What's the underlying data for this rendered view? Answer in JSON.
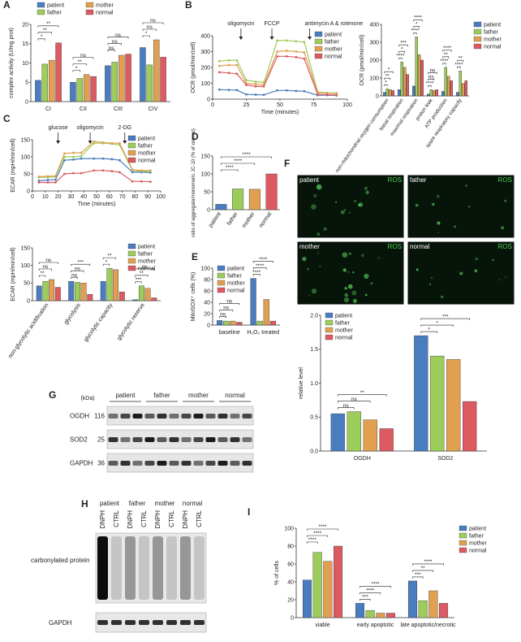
{
  "panel_labels": [
    "A",
    "B",
    "C",
    "D",
    "E",
    "F",
    "G",
    "H",
    "I"
  ],
  "chart_data": [
    {
      "type": "bar",
      "ylabel": "complex activity (U/mg prot)",
      "categories": [
        "CI",
        "CII",
        "CIII",
        "CIV"
      ],
      "ylim": [
        0,
        20
      ],
      "yticks": [
        0,
        5,
        10,
        15,
        20
      ],
      "legend": "top",
      "series": [
        {
          "name": "patient",
          "color": "#4a7cc0",
          "values": [
            5.5,
            5.0,
            9.3,
            14.0
          ]
        },
        {
          "name": "father",
          "color": "#9ccc5a",
          "values": [
            9.7,
            6.0,
            10.2,
            9.5
          ]
        },
        {
          "name": "mother",
          "color": "#e0a050",
          "values": [
            10.7,
            7.0,
            12.0,
            16.0
          ]
        },
        {
          "name": "normal",
          "color": "#dd5a60",
          "values": [
            15.2,
            6.5,
            12.3,
            11.5
          ]
        }
      ],
      "significance": [
        {
          "label": "*",
          "category": 0,
          "from": 0,
          "to": 1
        },
        {
          "label": "**",
          "category": 0,
          "from": 0,
          "to": 2
        },
        {
          "label": "**",
          "category": 0,
          "from": 0,
          "to": 3
        },
        {
          "label": "*",
          "category": 1,
          "from": 0,
          "to": 1
        },
        {
          "label": "**",
          "category": 1,
          "from": 0,
          "to": 2
        },
        {
          "label": "ns",
          "category": 1,
          "from": 0,
          "to": 3
        },
        {
          "label": "ns",
          "category": 2,
          "from": 0,
          "to": 1
        },
        {
          "label": "ns",
          "category": 2,
          "from": 0,
          "to": 2
        },
        {
          "label": "ns",
          "category": 2,
          "from": 0,
          "to": 3
        },
        {
          "label": "*",
          "category": 3,
          "from": 0,
          "to": 1
        },
        {
          "label": "ns",
          "category": 3,
          "from": 0,
          "to": 2
        },
        {
          "label": "ns",
          "category": 3,
          "from": 0,
          "to": 3
        }
      ]
    },
    {
      "type": "line",
      "ylabel": "OCR (pmol/min/cell)",
      "xlabel": "Time (minutes)",
      "x": [
        5,
        12,
        18,
        25,
        32,
        38,
        48,
        55,
        62,
        68,
        78,
        85,
        92
      ],
      "xlim": [
        0,
        100
      ],
      "xticks": [
        0,
        25,
        50,
        75,
        100
      ],
      "ylim": [
        0,
        400
      ],
      "yticks": [
        0,
        100,
        200,
        300,
        400
      ],
      "legend": "top-right",
      "annotations": [
        {
          "text": "oligomycin",
          "x": 21
        },
        {
          "text": "FCCP",
          "x": 44
        },
        {
          "text": "antimycin A & rotenone",
          "x": 72
        }
      ],
      "series": [
        {
          "name": "patient",
          "color": "#4a7cc0",
          "values": [
            60,
            58,
            57,
            30,
            28,
            27,
            55,
            55,
            52,
            50,
            25,
            25,
            23
          ]
        },
        {
          "name": "father",
          "color": "#9ccc5a",
          "values": [
            240,
            245,
            245,
            120,
            110,
            105,
            370,
            370,
            365,
            360,
            45,
            40,
            38
          ]
        },
        {
          "name": "mother",
          "color": "#e0a050",
          "values": [
            210,
            215,
            215,
            100,
            95,
            90,
            300,
            305,
            300,
            295,
            40,
            38,
            35
          ]
        },
        {
          "name": "normal",
          "color": "#dd5a60",
          "values": [
            170,
            165,
            160,
            90,
            80,
            80,
            270,
            270,
            265,
            255,
            30,
            28,
            25
          ]
        }
      ]
    },
    {
      "type": "bar",
      "ylabel": "OCR (pmol/min/cell)",
      "categories": [
        "non-mitochondrial oxygen consumption",
        "basal respiration",
        "maximal respiration",
        "proton leak",
        "ATP production",
        "spare respiratory capacity"
      ],
      "ylim": [
        0,
        400
      ],
      "yticks": [
        0,
        100,
        200,
        300,
        400
      ],
      "legend": "right",
      "series": [
        {
          "name": "patient",
          "color": "#4a7cc0",
          "values": [
            20,
            35,
            55,
            10,
            25,
            20
          ]
        },
        {
          "name": "father",
          "color": "#9ccc5a",
          "values": [
            40,
            190,
            330,
            35,
            160,
            140
          ]
        },
        {
          "name": "mother",
          "color": "#e0a050",
          "values": [
            35,
            160,
            230,
            30,
            110,
            70
          ]
        },
        {
          "name": "normal",
          "color": "#dd5a60",
          "values": [
            30,
            120,
            200,
            35,
            85,
            85
          ]
        }
      ],
      "significance": [
        {
          "label": "*",
          "category": 0,
          "from": 0,
          "to": 1
        },
        {
          "label": "**",
          "category": 0,
          "from": 0,
          "to": 2
        },
        {
          "label": "*",
          "category": 0,
          "from": 0,
          "to": 3
        },
        {
          "label": "****",
          "category": 1,
          "from": 0,
          "to": 1
        },
        {
          "label": "*",
          "category": 1,
          "from": 0,
          "to": 2
        },
        {
          "label": "***",
          "category": 1,
          "from": 0,
          "to": 3
        },
        {
          "label": "****",
          "category": 2,
          "from": 0,
          "to": 1
        },
        {
          "label": "*",
          "category": 2,
          "from": 0,
          "to": 2
        },
        {
          "label": "****",
          "category": 2,
          "from": 0,
          "to": 3
        },
        {
          "label": "****",
          "category": 3,
          "from": 0,
          "to": 1
        },
        {
          "label": "ns",
          "category": 3,
          "from": 0,
          "to": 2
        },
        {
          "label": "ns",
          "category": 3,
          "from": 0,
          "to": 3
        },
        {
          "label": "****",
          "category": 4,
          "from": 0,
          "to": 1
        },
        {
          "label": "**",
          "category": 4,
          "from": 0,
          "to": 2
        },
        {
          "label": "****",
          "category": 4,
          "from": 0,
          "to": 3
        },
        {
          "label": "****",
          "category": 5,
          "from": 0,
          "to": 1
        },
        {
          "label": "**",
          "category": 5,
          "from": 0,
          "to": 2
        }
      ]
    },
    {
      "type": "line",
      "ylabel": "ECAR (mpH/min/cell)",
      "xlabel": "Time (minutes)",
      "x": [
        5,
        12,
        18,
        25,
        32,
        38,
        48,
        55,
        62,
        68,
        78,
        85,
        92
      ],
      "xlim": [
        0,
        100
      ],
      "xticks": [
        0,
        10,
        20,
        30,
        40,
        50,
        60,
        70,
        80,
        90,
        100
      ],
      "ylim": [
        0,
        150
      ],
      "yticks": [
        0,
        50,
        100,
        150
      ],
      "legend": "top-right",
      "annotations": [
        {
          "text": "glucose",
          "x": 20
        },
        {
          "text": "oligomycin",
          "x": 45
        },
        {
          "text": "2-DG",
          "x": 72
        }
      ],
      "series": [
        {
          "name": "patient",
          "color": "#4a7cc0",
          "values": [
            30,
            32,
            33,
            90,
            92,
            95,
            95,
            95,
            93,
            90,
            55,
            55,
            54
          ]
        },
        {
          "name": "father",
          "color": "#9ccc5a",
          "values": [
            40,
            40,
            42,
            100,
            100,
            102,
            140,
            140,
            138,
            135,
            60,
            58,
            57
          ]
        },
        {
          "name": "mother",
          "color": "#e0a050",
          "values": [
            42,
            43,
            44,
            110,
            112,
            112,
            145,
            142,
            140,
            140,
            62,
            60,
            60
          ]
        },
        {
          "name": "normal",
          "color": "#dd5a60",
          "values": [
            25,
            25,
            25,
            50,
            52,
            52,
            60,
            60,
            58,
            55,
            28,
            28,
            27
          ]
        }
      ]
    },
    {
      "type": "bar",
      "ylabel": "ECAR (mpH/min/cell)",
      "categories": [
        "non-glycolytic acidification",
        "glycolysis",
        "glycolytic capacity",
        "glycolytic reserve"
      ],
      "ylim": [
        0,
        150
      ],
      "yticks": [
        0,
        50,
        100,
        150
      ],
      "legend": "top-right",
      "series": [
        {
          "name": "patient",
          "color": "#4a7cc0",
          "values": [
            42,
            55,
            55,
            3
          ]
        },
        {
          "name": "father",
          "color": "#9ccc5a",
          "values": [
            55,
            52,
            92,
            42
          ]
        },
        {
          "name": "mother",
          "color": "#e0a050",
          "values": [
            60,
            50,
            88,
            35
          ]
        },
        {
          "name": "normal",
          "color": "#dd5a60",
          "values": [
            38,
            18,
            25,
            8
          ]
        }
      ],
      "significance": [
        {
          "label": "**",
          "category": 0,
          "from": 0,
          "to": 1
        },
        {
          "label": "ns",
          "category": 0,
          "from": 0,
          "to": 2
        },
        {
          "label": "ns",
          "category": 0,
          "from": 0,
          "to": 3
        },
        {
          "label": "ns",
          "category": 1,
          "from": 0,
          "to": 1
        },
        {
          "label": "ns",
          "category": 1,
          "from": 0,
          "to": 2
        },
        {
          "label": "***",
          "category": 1,
          "from": 0,
          "to": 3
        },
        {
          "label": "*",
          "category": 2,
          "from": 0,
          "to": 1
        },
        {
          "label": "**",
          "category": 2,
          "from": 0,
          "to": 2
        },
        {
          "label": "***",
          "category": 3,
          "from": 0,
          "to": 1
        },
        {
          "label": "**",
          "category": 3,
          "from": 0,
          "to": 2
        },
        {
          "label": "ns",
          "category": 3,
          "from": 0,
          "to": 3
        }
      ]
    },
    {
      "type": "bar",
      "ylabel": "ratio of aggregate/monomeric JC-10 (% of normal)",
      "categories": [
        "patient",
        "father",
        "mother",
        "normal"
      ],
      "values": [
        15,
        58,
        57,
        100
      ],
      "colors": [
        "#4a7cc0",
        "#9ccc5a",
        "#e0a050",
        "#dd5a60"
      ],
      "ylim": [
        0,
        150
      ],
      "yticks": [
        0,
        50,
        100,
        150
      ],
      "significance": [
        {
          "label": "****",
          "from": 0,
          "to": 1
        },
        {
          "label": "****",
          "from": 0,
          "to": 2
        },
        {
          "label": "****",
          "from": 0,
          "to": 3
        }
      ]
    },
    {
      "type": "bar",
      "ylabel": "MitoSOX⁺ cells (%)",
      "categories": [
        "baseline",
        "H₂O₂ treated"
      ],
      "ylim": [
        0,
        100
      ],
      "yticks": [
        0,
        20,
        40,
        60,
        80,
        100
      ],
      "legend": "top-left",
      "series": [
        {
          "name": "patient",
          "color": "#4a7cc0",
          "values": [
            8,
            82
          ]
        },
        {
          "name": "father",
          "color": "#9ccc5a",
          "values": [
            7,
            7
          ]
        },
        {
          "name": "mother",
          "color": "#e0a050",
          "values": [
            7,
            45
          ]
        },
        {
          "name": "normal",
          "color": "#dd5a60",
          "values": [
            5,
            7
          ]
        }
      ],
      "significance": [
        {
          "label": "ns",
          "category": 0,
          "from": 0,
          "to": 1
        },
        {
          "label": "ns",
          "category": 0,
          "from": 0,
          "to": 2
        },
        {
          "label": "ns",
          "category": 0,
          "from": 0,
          "to": 3
        },
        {
          "label": "****",
          "category": 1,
          "from": 0,
          "to": 1
        },
        {
          "label": "****",
          "category": 1,
          "from": 0,
          "to": 2
        },
        {
          "label": "****",
          "category": 1,
          "from": 0,
          "to": 3
        }
      ]
    },
    {
      "type": "bar",
      "ylabel": "relative level",
      "categories": [
        "OGDH",
        "SOD2"
      ],
      "ylim": [
        0,
        2
      ],
      "yticks": [
        {
          "value": 0,
          "label": "0.0"
        },
        0.5,
        {
          "value": 1,
          "label": "1.0"
        },
        1.5,
        {
          "value": 2,
          "label": "2.0"
        }
      ],
      "legend": "top-left",
      "series": [
        {
          "name": "patient",
          "color": "#4a7cc0",
          "values": [
            0.55,
            1.7
          ]
        },
        {
          "name": "father",
          "color": "#9ccc5a",
          "values": [
            0.58,
            1.4
          ]
        },
        {
          "name": "mother",
          "color": "#e0a050",
          "values": [
            0.46,
            1.35
          ]
        },
        {
          "name": "normal",
          "color": "#dd5a60",
          "values": [
            0.33,
            0.73
          ]
        }
      ],
      "significance": [
        {
          "label": "ns",
          "category": 0,
          "from": 0,
          "to": 1
        },
        {
          "label": "ns",
          "category": 0,
          "from": 0,
          "to": 2
        },
        {
          "label": "**",
          "category": 0,
          "from": 0,
          "to": 3
        },
        {
          "label": "*",
          "category": 1,
          "from": 0,
          "to": 1
        },
        {
          "label": "*",
          "category": 1,
          "from": 0,
          "to": 2
        },
        {
          "label": "***",
          "category": 1,
          "from": 0,
          "to": 3
        }
      ]
    },
    {
      "type": "bar",
      "ylabel": "% of cells",
      "categories": [
        "viable",
        "early apoptotic",
        "late apoptotic/necrotic"
      ],
      "ylim": [
        0,
        100
      ],
      "yticks": [
        0,
        20,
        40,
        60,
        80,
        100
      ],
      "legend": "right",
      "series": [
        {
          "name": "patient",
          "color": "#4a7cc0",
          "values": [
            42,
            16,
            41
          ]
        },
        {
          "name": "father",
          "color": "#9ccc5a",
          "values": [
            73,
            8,
            19
          ]
        },
        {
          "name": "mother",
          "color": "#e0a050",
          "values": [
            63,
            5,
            30
          ]
        },
        {
          "name": "normal",
          "color": "#dd5a60",
          "values": [
            80,
            5,
            16
          ]
        }
      ],
      "significance": [
        {
          "label": "****",
          "category": 0,
          "from": 0,
          "to": 1
        },
        {
          "label": "****",
          "category": 0,
          "from": 0,
          "to": 2
        },
        {
          "label": "****",
          "category": 0,
          "from": 0,
          "to": 3
        },
        {
          "label": "***",
          "category": 1,
          "from": 0,
          "to": 1
        },
        {
          "label": "****",
          "category": 1,
          "from": 0,
          "to": 2
        },
        {
          "label": "****",
          "category": 1,
          "from": 0,
          "to": 3
        },
        {
          "label": "***",
          "category": 2,
          "from": 0,
          "to": 1
        },
        {
          "label": "**",
          "category": 2,
          "from": 0,
          "to": 2
        },
        {
          "label": "****",
          "category": 2,
          "from": 0,
          "to": 3
        }
      ]
    }
  ],
  "images": [
    {
      "name": "patient",
      "stain": "ROS"
    },
    {
      "name": "father",
      "stain": "ROS"
    },
    {
      "name": "mother",
      "stain": "ROS"
    },
    {
      "name": "normal",
      "stain": "ROS"
    }
  ],
  "western_blots": [
    {
      "unit": "(kDa)",
      "groups": [
        "patient",
        "father",
        "mother",
        "normal"
      ],
      "rows": [
        {
          "protein": "OGDH",
          "kda": 116
        },
        {
          "protein": "SOD2",
          "kda": 25
        },
        {
          "protein": "GAPDH",
          "kda": 36
        }
      ]
    },
    {
      "groups": [
        "patient",
        "father",
        "mother",
        "normal"
      ],
      "lanes": [
        "DNPH",
        "CTRL",
        "DNPH",
        "CTRL",
        "DNPH",
        "CTRL",
        "DNPH",
        "CTRL"
      ],
      "rows": [
        "carbonylated protein",
        "GAPDH"
      ]
    }
  ]
}
